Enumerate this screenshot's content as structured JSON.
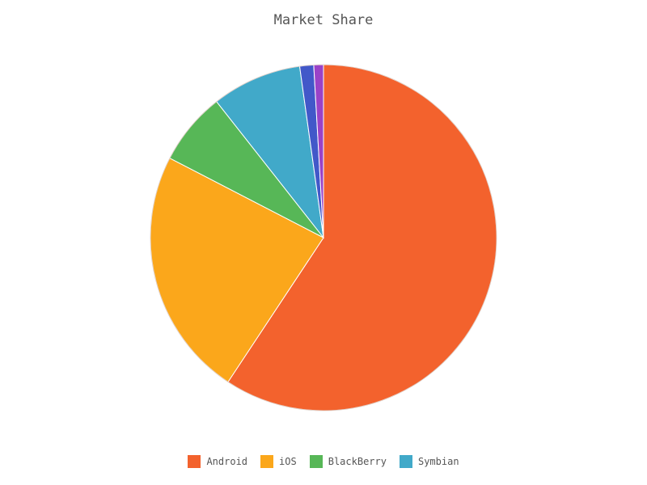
{
  "chart_data": {
    "type": "pie",
    "title": "Market Share",
    "categories": [
      "Android",
      "iOS",
      "BlackBerry",
      "Symbian",
      "",
      ""
    ],
    "values": [
      59.3,
      23.3,
      6.8,
      8.4,
      1.3,
      0.9
    ],
    "colors": [
      "#f3622d",
      "#fba71b",
      "#57b757",
      "#41a9c9",
      "#4258c9",
      "#9a42c8"
    ],
    "legend": {
      "position": "bottom",
      "items": [
        "Android",
        "iOS",
        "BlackBerry",
        "Symbian"
      ]
    },
    "start_angle_deg": 0,
    "direction": "clockwise"
  }
}
